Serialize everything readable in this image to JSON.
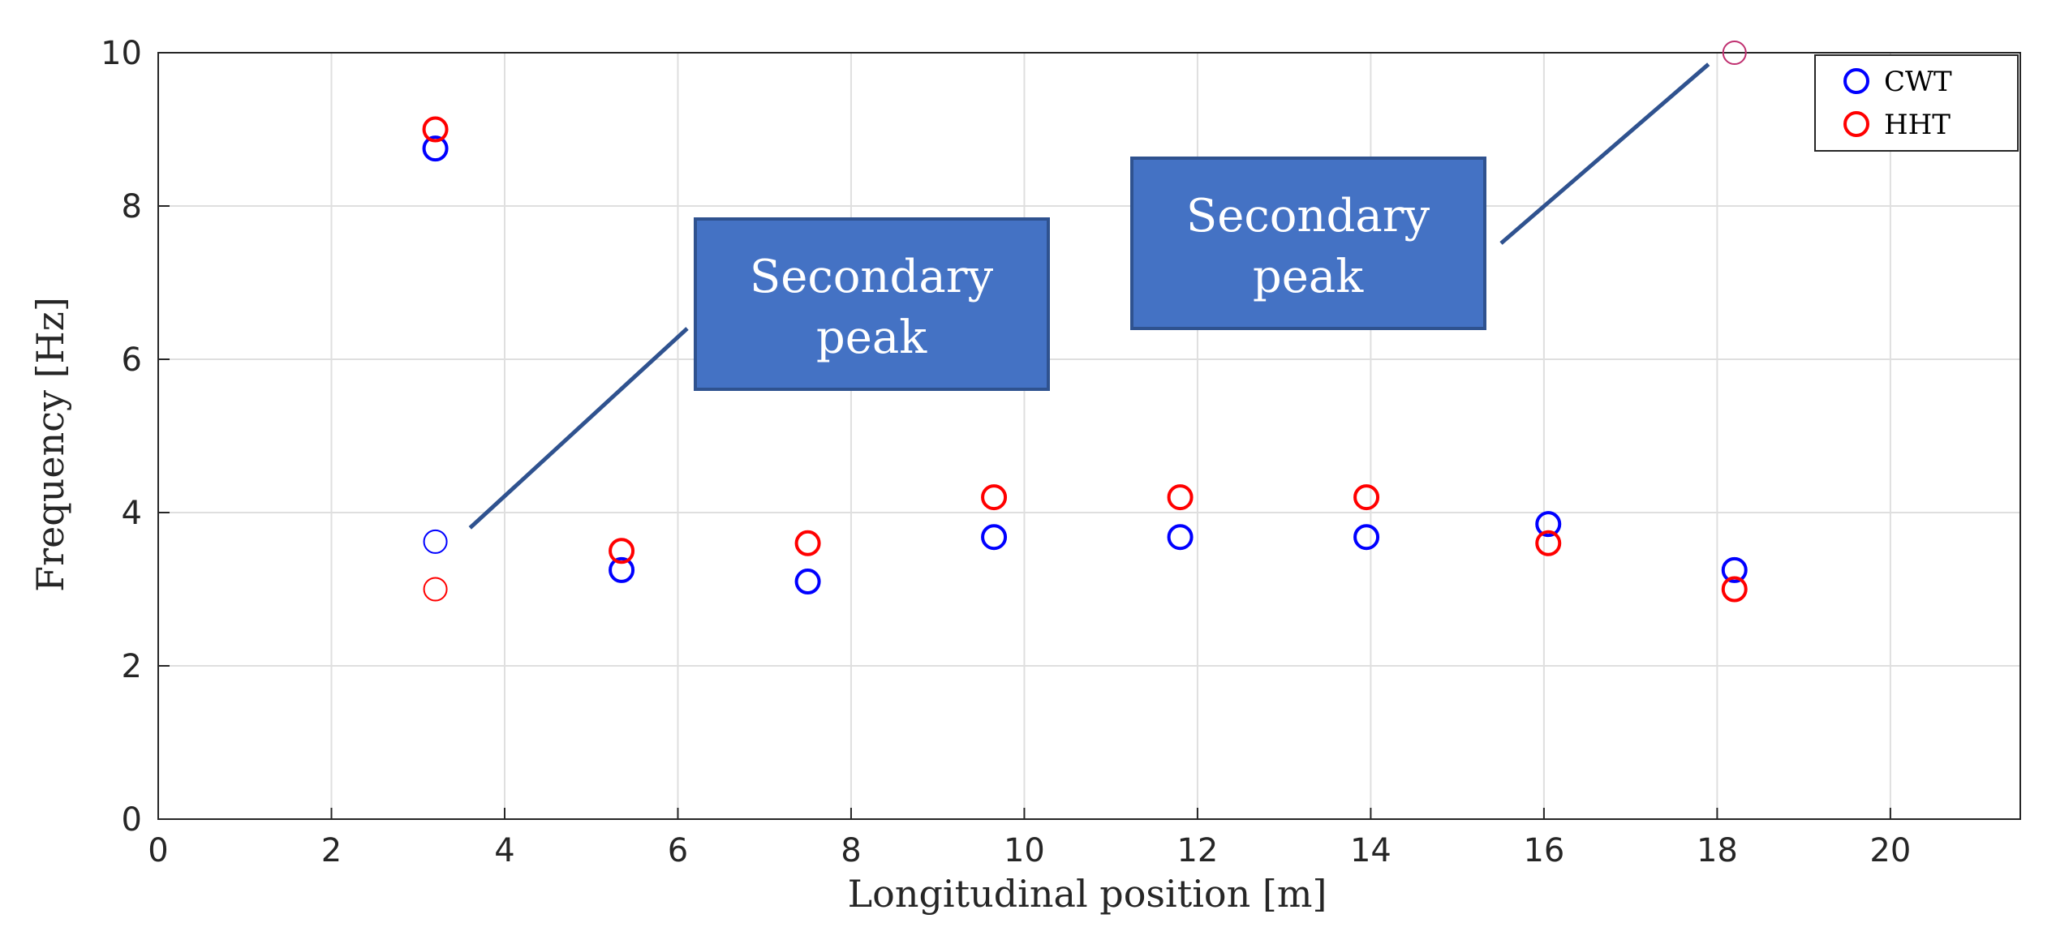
{
  "chart_data": {
    "type": "scatter",
    "xlabel": "Longitudinal position [m]",
    "ylabel": "Frequency [Hz]",
    "xlim": [
      0,
      21.5
    ],
    "ylim": [
      0,
      10
    ],
    "xticks": [
      0,
      2,
      4,
      6,
      8,
      10,
      12,
      14,
      16,
      18,
      20
    ],
    "yticks": [
      0,
      2,
      4,
      6,
      8,
      10
    ],
    "grid": true,
    "legend_position": "top-right",
    "series": [
      {
        "name": "CWT",
        "color": "#0000ff",
        "marker": "circle-open",
        "x": [
          3.2,
          5.35,
          7.5,
          9.65,
          11.8,
          13.95,
          16.05,
          18.2
        ],
        "y": [
          8.75,
          3.25,
          3.1,
          3.68,
          3.68,
          3.68,
          3.85,
          3.25
        ]
      },
      {
        "name": "HHT",
        "color": "#ff0000",
        "marker": "circle-open",
        "x": [
          3.2,
          5.35,
          7.5,
          9.65,
          11.8,
          13.95,
          16.05,
          18.2
        ],
        "y": [
          9.0,
          3.5,
          3.6,
          4.2,
          4.2,
          4.2,
          3.6,
          3.0
        ]
      }
    ],
    "secondary_points": [
      {
        "series": "CWT",
        "x": 3.2,
        "y": 3.62,
        "color": "#0000ff"
      },
      {
        "series": "HHT",
        "x": 3.2,
        "y": 3.0,
        "color": "#ff0000"
      },
      {
        "series": "both",
        "x": 18.2,
        "y": 10.0,
        "color": "#c03070"
      }
    ],
    "annotations": [
      {
        "text_line1": "Secondary",
        "text_line2": "peak",
        "box_color": "#4472c4",
        "box_border": "#2f528f",
        "arrow_to": {
          "x": 3.6,
          "y": 3.8
        }
      },
      {
        "text_line1": "Secondary",
        "text_line2": "peak",
        "box_color": "#4472c4",
        "box_border": "#2f528f",
        "arrow_to": {
          "x": 17.9,
          "y": 9.85
        }
      }
    ]
  }
}
